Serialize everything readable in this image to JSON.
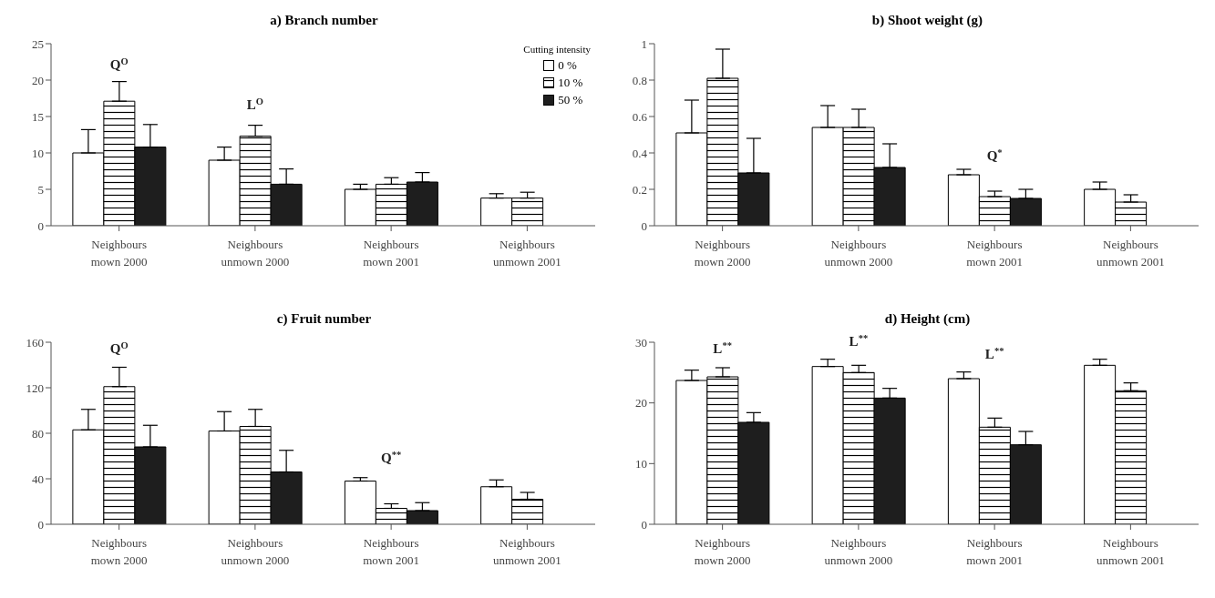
{
  "chart_data": [
    {
      "type": "bar",
      "title": "a) Branch number",
      "legend_title": "Cutting intensity",
      "legend": "top right",
      "categories": [
        "Neighbours mown 2000",
        "Neighbours unmown 2000",
        "Neighbours mown 2001",
        "Neighbours unmown 2001"
      ],
      "ylim": [
        0,
        25
      ],
      "yticks": [
        0,
        5,
        10,
        15,
        20,
        25
      ],
      "series": [
        {
          "name": "0 %",
          "color": "#ffffff",
          "values": [
            10,
            9,
            5,
            3.8
          ],
          "errors": [
            [
              10,
              13.2
            ],
            [
              9,
              10.8
            ],
            [
              5,
              5.7
            ],
            [
              3.8,
              4.4
            ]
          ]
        },
        {
          "name": "10 %",
          "color": "#000000",
          "values": [
            17.1,
            12.3,
            5.7,
            3.8
          ],
          "errors": [
            [
              17.1,
              19.8
            ],
            [
              12.3,
              13.8
            ],
            [
              5.7,
              6.6
            ],
            [
              3.8,
              4.6
            ]
          ]
        },
        {
          "name": "50 %",
          "color": "#1e1e1e",
          "values": [
            10.8,
            5.7,
            6.0,
            null
          ],
          "errors": [
            [
              10.8,
              13.9
            ],
            [
              5.7,
              7.8
            ],
            [
              6.0,
              7.3
            ],
            null
          ]
        }
      ],
      "annotations": [
        "Q$^{O}$",
        "L$^{O}$"
      ]
    },
    {
      "type": "bar",
      "title": "b) Shoot weight (g)",
      "categories": [
        "Neighbours mown 2000",
        "Neighbours unmown 2000",
        "Neighbours mown 2001",
        "Neighbours unmown 2001"
      ],
      "ylim": [
        0,
        1
      ],
      "yticks": [
        0,
        0.2,
        0.4,
        0.6,
        0.8,
        1
      ],
      "series": [
        {
          "color": "#ffffff",
          "values": [
            0.51,
            0.54,
            0.28,
            0.2
          ],
          "errors": [
            [
              0.51,
              0.69
            ],
            [
              0.54,
              0.66
            ],
            [
              0.28,
              0.31
            ],
            [
              0.2,
              0.24
            ]
          ]
        },
        {
          "color": "#000000",
          "values": [
            0.81,
            0.54,
            0.16,
            0.13
          ],
          "errors": [
            [
              0.81,
              0.97
            ],
            [
              0.54,
              0.64
            ],
            [
              0.16,
              0.19
            ],
            [
              0.13,
              0.17
            ]
          ]
        },
        {
          "color": "#1e1e1e",
          "values": [
            0.29,
            0.32,
            0.15,
            null
          ],
          "errors": [
            [
              0.29,
              0.48
            ],
            [
              0.32,
              0.45
            ],
            [
              0.15,
              0.2
            ],
            null
          ]
        }
      ],
      "annotations": [
        "Q$^{*}$"
      ]
    },
    {
      "type": "bar",
      "title": "c) Fruit number",
      "categories": [
        "Neighbours mown 2000",
        "Neighbours unmown 2000",
        "Neighbours mown 2001",
        "Neighbours unmown 2001"
      ],
      "ylim": [
        0,
        160
      ],
      "yticks": [
        0,
        40,
        80,
        120,
        160
      ],
      "series": [
        {
          "color": "#ffffff",
          "values": [
            83,
            82,
            38,
            33
          ],
          "errors": [
            [
              83,
              101
            ],
            [
              82,
              99
            ],
            [
              38,
              41
            ],
            [
              33,
              39
            ]
          ]
        },
        {
          "color": "#000000",
          "values": [
            121,
            86,
            14,
            22
          ],
          "errors": [
            [
              121,
              138
            ],
            [
              86,
              101
            ],
            [
              14,
              18
            ],
            [
              22,
              28
            ]
          ]
        },
        {
          "color": "#1e1e1e",
          "values": [
            68,
            46,
            12,
            null
          ],
          "errors": [
            [
              68,
              87
            ],
            [
              46,
              65
            ],
            [
              12,
              19
            ],
            null
          ]
        }
      ],
      "annotations": [
        "Q$^{O}$",
        "Q$^{**}$"
      ]
    },
    {
      "type": "bar",
      "title": "d) Height (cm)",
      "categories": [
        "Neighbours mown 2000",
        "Neighbours unmown 2000",
        "Neighbours mown 2001",
        "Neighbours unmown 2001"
      ],
      "ylim": [
        0,
        30
      ],
      "yticks": [
        0,
        10,
        20,
        30
      ],
      "series": [
        {
          "color": "#ffffff",
          "values": [
            23.7,
            26,
            24,
            26.2
          ],
          "errors": [
            [
              23.7,
              25.4
            ],
            [
              26,
              27.2
            ],
            [
              24,
              25.1
            ],
            [
              26.2,
              27.2
            ]
          ]
        },
        {
          "color": "#000000",
          "values": [
            24.3,
            25,
            16,
            22
          ],
          "errors": [
            [
              24.3,
              25.8
            ],
            [
              25,
              26.2
            ],
            [
              16,
              17.5
            ],
            [
              22,
              23.3
            ]
          ]
        },
        {
          "color": "#1e1e1e",
          "values": [
            16.8,
            20.8,
            13.1,
            null
          ],
          "errors": [
            [
              16.8,
              18.4
            ],
            [
              20.8,
              22.4
            ],
            [
              13.1,
              15.3
            ],
            null
          ]
        }
      ],
      "annotations": [
        "L$^{**}$",
        "L$^{**}$",
        "L$^{**}$"
      ]
    }
  ]
}
